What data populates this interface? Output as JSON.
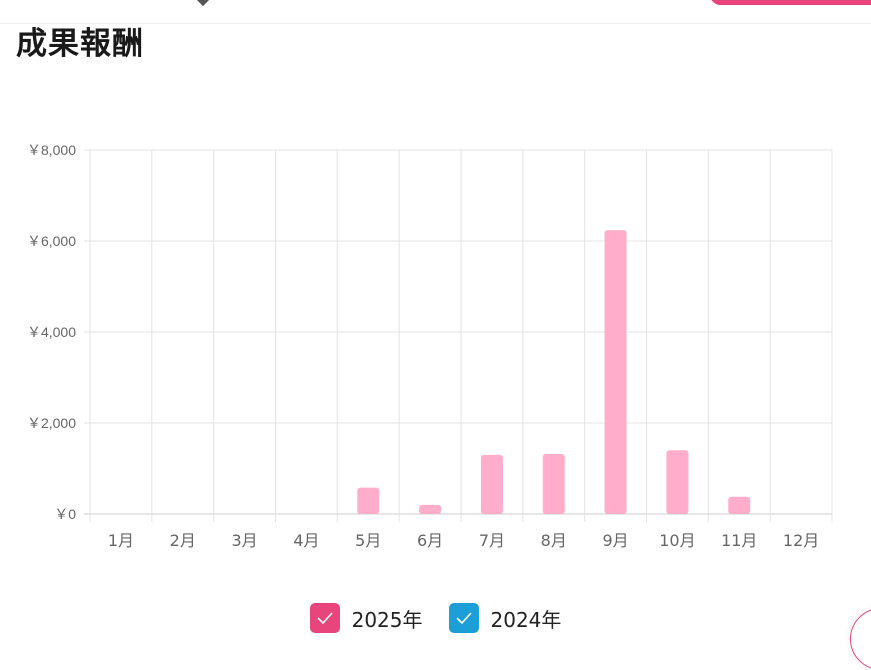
{
  "page": {
    "title": "成果報酬"
  },
  "colors": {
    "series_2025": "#ffadca",
    "legend_2025": "#e8457d",
    "legend_2024": "#1b9fd6",
    "grid": "#e3e3e3",
    "tick_text": "#666666"
  },
  "legend": [
    {
      "label": "2025年",
      "color": "#e8457d",
      "icon": "check-icon"
    },
    {
      "label": "2024年",
      "color": "#1b9fd6",
      "icon": "check-icon"
    }
  ],
  "chart_data": {
    "type": "bar",
    "categories": [
      "1月",
      "2月",
      "3月",
      "4月",
      "5月",
      "6月",
      "7月",
      "8月",
      "9月",
      "10月",
      "11月",
      "12月"
    ],
    "series": [
      {
        "name": "2025年",
        "color": "#ffadca",
        "values": [
          0,
          0,
          0,
          0,
          580,
          200,
          1300,
          1320,
          6240,
          1400,
          380,
          0
        ]
      },
      {
        "name": "2024年",
        "color": "#1b9fd6",
        "values": [
          0,
          0,
          0,
          0,
          0,
          0,
          0,
          0,
          0,
          0,
          0,
          0
        ]
      }
    ],
    "y_ticks": [
      0,
      2000,
      4000,
      6000,
      8000
    ],
    "y_tick_labels": [
      "￥0",
      "￥2,000",
      "￥4,000",
      "￥6,000",
      "￥8,000"
    ],
    "ylim": [
      0,
      8000
    ],
    "grid": true,
    "legend_position": "bottom"
  }
}
